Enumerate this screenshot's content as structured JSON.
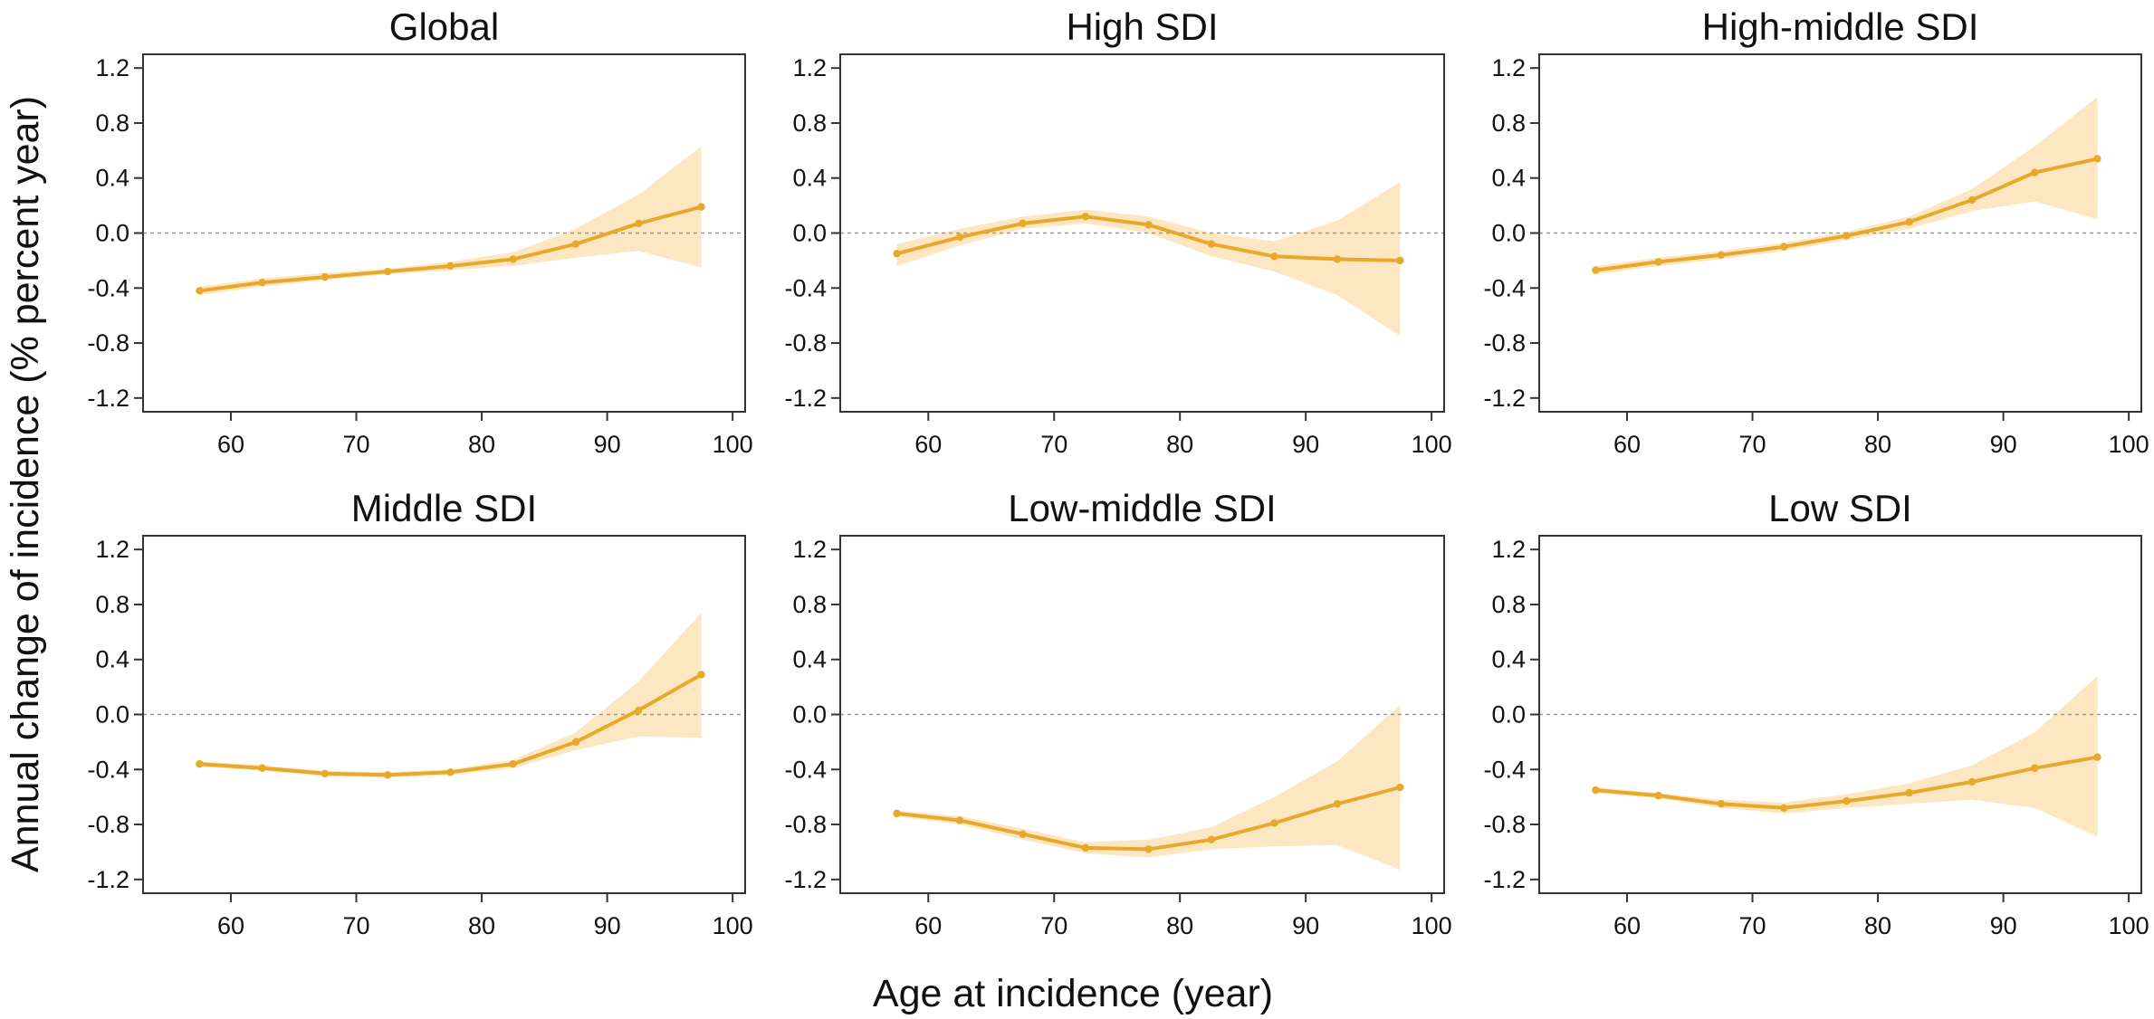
{
  "figure": {
    "ylabel": "Annual change of incidence (% percent year)",
    "xlabel": "Age at incidence (year)"
  },
  "colors": {
    "line": "#e8a82c",
    "band": "#fde7c2",
    "frame": "#333333",
    "zero_line": "#9a9a9a"
  },
  "chart_data": [
    {
      "type": "line",
      "title": "Global",
      "x": [
        57.5,
        62.5,
        67.5,
        72.5,
        77.5,
        82.5,
        87.5,
        92.5,
        97.5
      ],
      "series": [
        {
          "values": [
            -0.42,
            -0.36,
            -0.32,
            -0.28,
            -0.24,
            -0.19,
            -0.08,
            0.07,
            0.19
          ]
        }
      ],
      "ci_lower": [
        -0.45,
        -0.39,
        -0.34,
        -0.3,
        -0.27,
        -0.24,
        -0.18,
        -0.13,
        -0.25
      ],
      "ci_upper": [
        -0.39,
        -0.33,
        -0.29,
        -0.26,
        -0.21,
        -0.14,
        0.03,
        0.28,
        0.63
      ],
      "xlim": [
        53,
        101
      ],
      "ylim": [
        -1.3,
        1.3
      ],
      "xticks": [
        60,
        70,
        80,
        90,
        100
      ],
      "yticks": [
        1.2,
        0.8,
        0.4,
        0.0,
        -0.4,
        -0.8,
        -1.2
      ],
      "ytick_labels": [
        "1.2",
        "0.8",
        "0.4",
        "0.0",
        "-0.4",
        "-0.8",
        "-1.2"
      ]
    },
    {
      "type": "line",
      "title": "High SDI",
      "x": [
        57.5,
        62.5,
        67.5,
        72.5,
        77.5,
        82.5,
        87.5,
        92.5,
        97.5
      ],
      "series": [
        {
          "values": [
            -0.15,
            -0.03,
            0.07,
            0.12,
            0.06,
            -0.08,
            -0.17,
            -0.19,
            -0.2
          ]
        }
      ],
      "ci_lower": [
        -0.24,
        -0.09,
        0.03,
        0.07,
        0.0,
        -0.17,
        -0.28,
        -0.45,
        -0.75
      ],
      "ci_upper": [
        -0.08,
        0.03,
        0.12,
        0.17,
        0.12,
        0.0,
        -0.06,
        0.09,
        0.37
      ],
      "xlim": [
        53,
        101
      ],
      "ylim": [
        -1.3,
        1.3
      ],
      "xticks": [
        60,
        70,
        80,
        90,
        100
      ],
      "yticks": [
        1.2,
        0.8,
        0.4,
        0.0,
        -0.4,
        -0.8,
        -1.2
      ],
      "ytick_labels": [
        "1.2",
        "0.8",
        "0.4",
        "0.0",
        "-0.4",
        "-0.8",
        "-1.2"
      ]
    },
    {
      "type": "line",
      "title": "High-middle SDI",
      "x": [
        57.5,
        62.5,
        67.5,
        72.5,
        77.5,
        82.5,
        87.5,
        92.5,
        97.5
      ],
      "series": [
        {
          "values": [
            -0.27,
            -0.21,
            -0.16,
            -0.1,
            -0.02,
            0.08,
            0.24,
            0.44,
            0.54
          ]
        }
      ],
      "ci_lower": [
        -0.3,
        -0.24,
        -0.19,
        -0.13,
        -0.05,
        0.03,
        0.16,
        0.23,
        0.1
      ],
      "ci_upper": [
        -0.24,
        -0.18,
        -0.13,
        -0.07,
        0.01,
        0.12,
        0.32,
        0.63,
        0.99
      ],
      "xlim": [
        53,
        101
      ],
      "ylim": [
        -1.3,
        1.3
      ],
      "xticks": [
        60,
        70,
        80,
        90,
        100
      ],
      "yticks": [
        1.2,
        0.8,
        0.4,
        0.0,
        -0.4,
        -0.8,
        -1.2
      ],
      "ytick_labels": [
        "1.2",
        "0.8",
        "0.4",
        "0.0",
        "-0.4",
        "-0.8",
        "-1.2"
      ]
    },
    {
      "type": "line",
      "title": "Middle SDI",
      "x": [
        57.5,
        62.5,
        67.5,
        72.5,
        77.5,
        82.5,
        87.5,
        92.5,
        97.5
      ],
      "series": [
        {
          "values": [
            -0.36,
            -0.39,
            -0.43,
            -0.44,
            -0.42,
            -0.36,
            -0.2,
            0.03,
            0.29
          ]
        }
      ],
      "ci_lower": [
        -0.38,
        -0.41,
        -0.45,
        -0.46,
        -0.44,
        -0.39,
        -0.26,
        -0.16,
        -0.17
      ],
      "ci_upper": [
        -0.34,
        -0.37,
        -0.41,
        -0.42,
        -0.4,
        -0.33,
        -0.13,
        0.24,
        0.74
      ],
      "xlim": [
        53,
        101
      ],
      "ylim": [
        -1.3,
        1.3
      ],
      "xticks": [
        60,
        70,
        80,
        90,
        100
      ],
      "yticks": [
        1.2,
        0.8,
        0.4,
        0.0,
        -0.4,
        -0.8,
        -1.2
      ],
      "ytick_labels": [
        "1.2",
        "0.8",
        "0.4",
        "0.0",
        "-0.4",
        "-0.8",
        "-1.2"
      ]
    },
    {
      "type": "line",
      "title": "Low-middle SDI",
      "x": [
        57.5,
        62.5,
        67.5,
        72.5,
        77.5,
        82.5,
        87.5,
        92.5,
        97.5
      ],
      "series": [
        {
          "values": [
            -0.72,
            -0.77,
            -0.87,
            -0.97,
            -0.98,
            -0.91,
            -0.79,
            -0.65,
            -0.53
          ]
        }
      ],
      "ci_lower": [
        -0.74,
        -0.8,
        -0.91,
        -1.01,
        -1.04,
        -0.98,
        -0.96,
        -0.95,
        -1.13
      ],
      "ci_upper": [
        -0.7,
        -0.74,
        -0.83,
        -0.93,
        -0.91,
        -0.82,
        -0.6,
        -0.34,
        0.07
      ],
      "xlim": [
        53,
        101
      ],
      "ylim": [
        -1.3,
        1.3
      ],
      "xticks": [
        60,
        70,
        80,
        90,
        100
      ],
      "yticks": [
        1.2,
        0.8,
        0.4,
        0.0,
        -0.4,
        -0.8,
        -1.2
      ],
      "ytick_labels": [
        "1.2",
        "0.8",
        "0.4",
        "0.0",
        "-0.4",
        "-0.8",
        "-1.2"
      ]
    },
    {
      "type": "line",
      "title": "Low SDI",
      "x": [
        57.5,
        62.5,
        67.5,
        72.5,
        77.5,
        82.5,
        87.5,
        92.5,
        97.5
      ],
      "series": [
        {
          "values": [
            -0.55,
            -0.59,
            -0.65,
            -0.68,
            -0.63,
            -0.57,
            -0.49,
            -0.39,
            -0.31
          ]
        }
      ],
      "ci_lower": [
        -0.57,
        -0.61,
        -0.68,
        -0.72,
        -0.68,
        -0.65,
        -0.62,
        -0.68,
        -0.89
      ],
      "ci_upper": [
        -0.53,
        -0.57,
        -0.62,
        -0.64,
        -0.58,
        -0.5,
        -0.37,
        -0.13,
        0.28
      ],
      "xlim": [
        53,
        101
      ],
      "ylim": [
        -1.3,
        1.3
      ],
      "xticks": [
        60,
        70,
        80,
        90,
        100
      ],
      "yticks": [
        1.2,
        0.8,
        0.4,
        0.0,
        -0.4,
        -0.8,
        -1.2
      ],
      "ytick_labels": [
        "1.2",
        "0.8",
        "0.4",
        "0.0",
        "-0.4",
        "-0.8",
        "-1.2"
      ]
    }
  ]
}
